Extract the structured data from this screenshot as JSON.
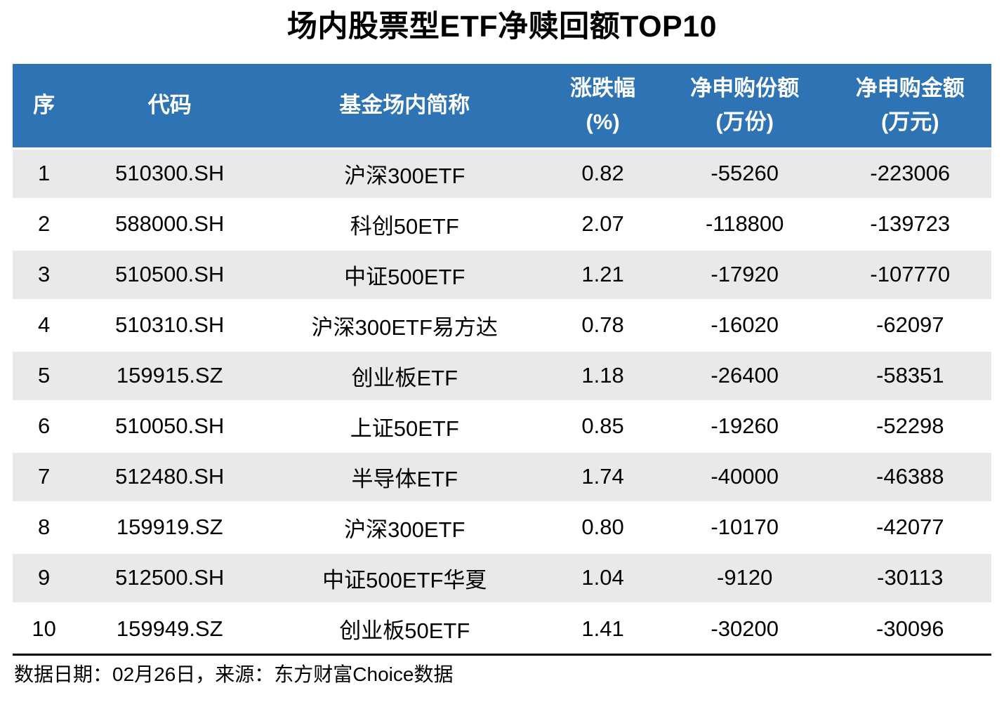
{
  "title": "场内股票型ETF净赎回额TOP10",
  "table": {
    "columns": [
      {
        "label": "序",
        "sub": ""
      },
      {
        "label": "代码",
        "sub": ""
      },
      {
        "label": "基金场内简称",
        "sub": ""
      },
      {
        "label": "涨跌幅",
        "sub": "(%)"
      },
      {
        "label": "净申购份额",
        "sub": "(万份)"
      },
      {
        "label": "净申购金额",
        "sub": "(万元)"
      }
    ],
    "rows": [
      [
        "1",
        "510300.SH",
        "沪深300ETF",
        "0.82",
        "-55260",
        "-223006"
      ],
      [
        "2",
        "588000.SH",
        "科创50ETF",
        "2.07",
        "-118800",
        "-139723"
      ],
      [
        "3",
        "510500.SH",
        "中证500ETF",
        "1.21",
        "-17920",
        "-107770"
      ],
      [
        "4",
        "510310.SH",
        "沪深300ETF易方达",
        "0.78",
        "-16020",
        "-62097"
      ],
      [
        "5",
        "159915.SZ",
        "创业板ETF",
        "1.18",
        "-26400",
        "-58351"
      ],
      [
        "6",
        "510050.SH",
        "上证50ETF",
        "0.85",
        "-19260",
        "-52298"
      ],
      [
        "7",
        "512480.SH",
        "半导体ETF",
        "1.74",
        "-40000",
        "-46388"
      ],
      [
        "8",
        "159919.SZ",
        "沪深300ETF",
        "0.80",
        "-10170",
        "-42077"
      ],
      [
        "9",
        "512500.SH",
        "中证500ETF华夏",
        "1.04",
        "-9120",
        "-30113"
      ],
      [
        "10",
        "159949.SZ",
        "创业板50ETF",
        "1.41",
        "-30200",
        "-30096"
      ]
    ]
  },
  "footer": {
    "text": "数据日期：02月26日，来源：东方财富Choice数据"
  },
  "colors": {
    "header_bg": "#2E74B5",
    "header_text": "#FFFFFF",
    "row_alt_bg": "#E9E9E9",
    "rule": "#000000"
  },
  "chart_data": {
    "type": "table",
    "title": "场内股票型ETF净赎回额TOP10",
    "columns": [
      "序",
      "代码",
      "基金场内简称",
      "涨跌幅(%)",
      "净申购份额(万份)",
      "净申购金额(万元)"
    ],
    "rows": [
      [
        1,
        "510300.SH",
        "沪深300ETF",
        0.82,
        -55260,
        -223006
      ],
      [
        2,
        "588000.SH",
        "科创50ETF",
        2.07,
        -118800,
        -139723
      ],
      [
        3,
        "510500.SH",
        "中证500ETF",
        1.21,
        -17920,
        -107770
      ],
      [
        4,
        "510310.SH",
        "沪深300ETF易方达",
        0.78,
        -16020,
        -62097
      ],
      [
        5,
        "159915.SZ",
        "创业板ETF",
        1.18,
        -26400,
        -58351
      ],
      [
        6,
        "510050.SH",
        "上证50ETF",
        0.85,
        -19260,
        -52298
      ],
      [
        7,
        "512480.SH",
        "半导体ETF",
        1.74,
        -40000,
        -46388
      ],
      [
        8,
        "159919.SZ",
        "沪深300ETF",
        0.8,
        -10170,
        -42077
      ],
      [
        9,
        "512500.SH",
        "中证500ETF华夏",
        1.04,
        -9120,
        -30113
      ],
      [
        10,
        "159949.SZ",
        "创业板50ETF",
        1.41,
        -30200,
        -30096
      ]
    ],
    "source_note": "数据日期：02月26日，来源：东方财富Choice数据"
  }
}
